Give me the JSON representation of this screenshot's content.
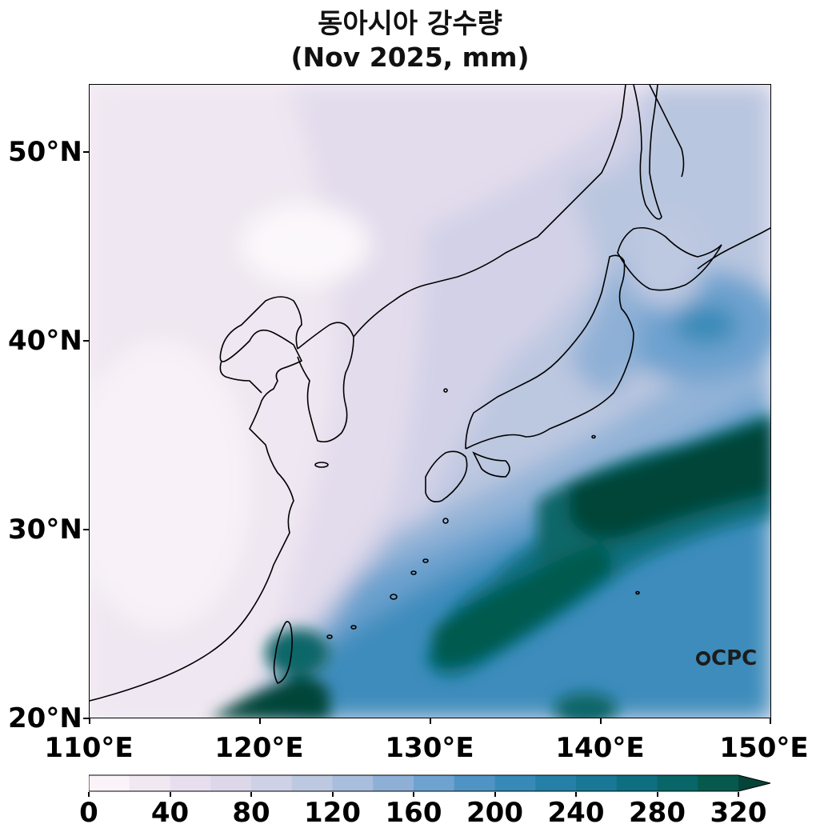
{
  "title": {
    "line1": "동아시아 강수량",
    "line2": "(Nov 2025, mm)"
  },
  "map": {
    "lon_range": [
      110,
      150
    ],
    "lat_range": [
      20,
      53.5
    ],
    "lat_ticks": [
      "20°N",
      "30°N",
      "40°N",
      "50°N"
    ],
    "lon_ticks": [
      "110°E",
      "120°E",
      "130°E",
      "140°E",
      "150°E"
    ],
    "logo": "CPC"
  },
  "colorbar": {
    "labels": [
      "0",
      "40",
      "80",
      "120",
      "160",
      "200",
      "240",
      "280",
      "320"
    ],
    "levels": [
      0,
      20,
      40,
      60,
      80,
      100,
      120,
      140,
      160,
      180,
      200,
      220,
      240,
      260,
      280,
      300,
      320
    ],
    "colors": [
      "#faf4fa",
      "#f1e8f2",
      "#e7dfee",
      "#dcd8ea",
      "#cfd1e6",
      "#bdc8e1",
      "#a9bddc",
      "#8fb0d6",
      "#6ea2cf",
      "#4f94c5",
      "#378ab8",
      "#2580a7",
      "#187896",
      "#0e6f80",
      "#086668",
      "#065a4d",
      "#054438"
    ],
    "extend": "max"
  }
}
